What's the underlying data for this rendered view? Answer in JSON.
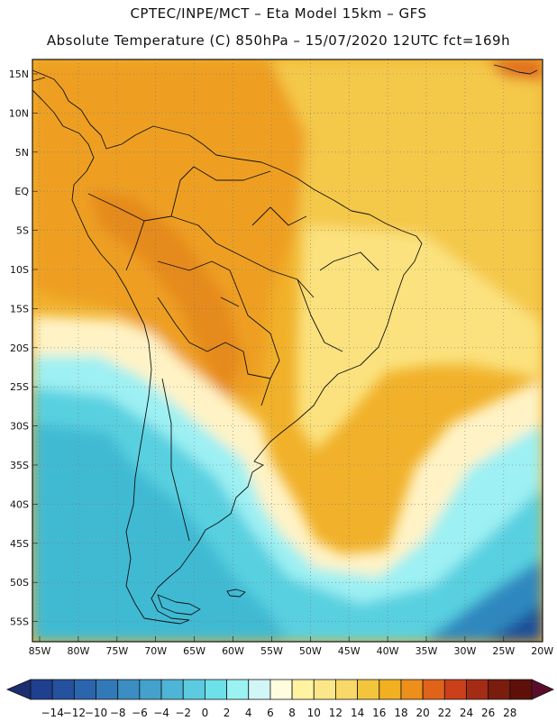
{
  "header": {
    "line1": "CPTEC/INPE/MCT –  Eta Model 15km – GFS",
    "line2": "Absolute Temperature (C) 850hPa – 15/07/2020 12UTC fct=169h"
  },
  "axes": {
    "lat_labels": [
      "15N",
      "10N",
      "5N",
      "EQ",
      "5S",
      "10S",
      "15S",
      "20S",
      "25S",
      "30S",
      "35S",
      "40S",
      "45S",
      "50S",
      "55S"
    ],
    "lon_labels": [
      "85W",
      "80W",
      "75W",
      "70W",
      "65W",
      "60W",
      "55W",
      "50W",
      "45W",
      "40W",
      "35W",
      "30W",
      "25W",
      "20W"
    ]
  },
  "colorbar": {
    "labels": [
      "-14",
      "-12",
      "-10",
      "-8",
      "-6",
      "-4",
      "-2",
      "0",
      "2",
      "4",
      "6",
      "8",
      "10",
      "12",
      "14",
      "16",
      "18",
      "20",
      "22",
      "24",
      "26",
      "28"
    ],
    "colors": [
      "#1f3f8f",
      "#24529f",
      "#2a65ad",
      "#3279b8",
      "#3b8dc2",
      "#44a1cc",
      "#4fb5d6",
      "#5ccbe0",
      "#6ee0ea",
      "#9af2f2",
      "#d2f6f8",
      "#fffce0",
      "#fff2a0",
      "#fbe78a",
      "#f8d868",
      "#f3c53d",
      "#f1b021",
      "#ec8f1b",
      "#e0631a",
      "#c9401b",
      "#a52c14",
      "#7a1d0f",
      "#5f0f0a"
    ],
    "under_color": "#1c2d70",
    "over_color": "#5a0d2a"
  },
  "palette": {
    "deep_cold": "#3bb7d2",
    "cold": "#58d0e0",
    "cool": "#9df0f3",
    "mild": "#fff6cf",
    "warm_light": "#fbe27e",
    "warm": "#f4c84a",
    "hot": "#f1b12a",
    "hotter": "#ee9f24",
    "extreme": "#e06a1e",
    "deep_blue": "#2e88bf",
    "navy": "#1f4f9a"
  }
}
